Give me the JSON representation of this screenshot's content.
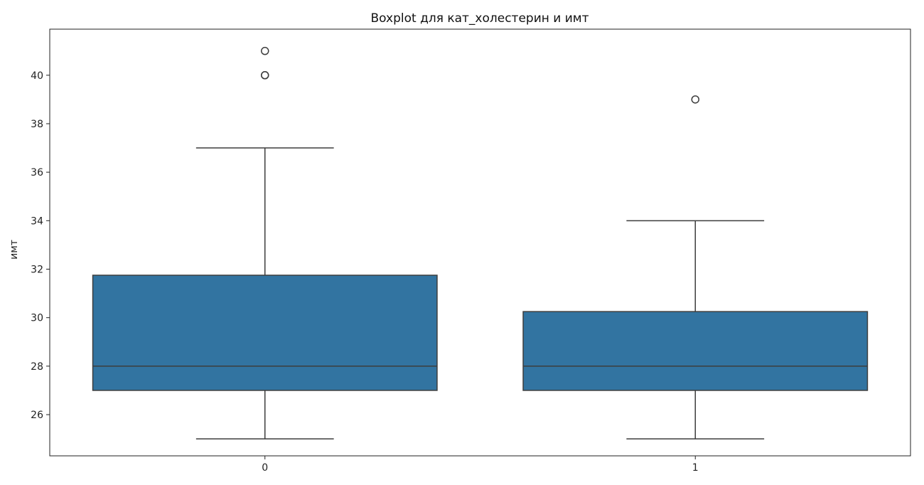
{
  "chart_data": {
    "type": "boxplot",
    "title": "Boxplot для кат_холестерин и имт",
    "xlabel": "",
    "ylabel": "имт",
    "categories": [
      "0",
      "1"
    ],
    "yticks": [
      "26",
      "28",
      "30",
      "32",
      "34",
      "36",
      "38",
      "40"
    ],
    "ylim": [
      24.3,
      41.9
    ],
    "grid": false,
    "box_color": "#3274a1",
    "line_color": "#3d3d3d",
    "boxes": [
      {
        "category": "0",
        "whisker_low": 25,
        "q1": 27,
        "median": 28,
        "q3": 31.75,
        "whisker_high": 37,
        "outliers": [
          40,
          40,
          41
        ]
      },
      {
        "category": "1",
        "whisker_low": 25,
        "q1": 27,
        "median": 28,
        "q3": 30.25,
        "whisker_high": 34,
        "outliers": [
          39
        ]
      }
    ]
  }
}
